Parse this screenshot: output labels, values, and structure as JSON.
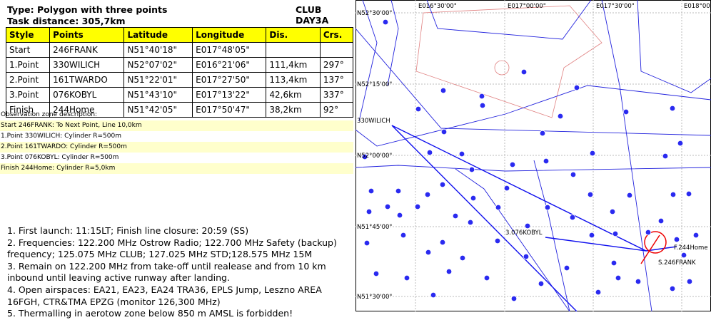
{
  "header": {
    "type_line": "Type: Polygon with three points",
    "club": "CLUB DAY3A",
    "distance": "Task distance: 305,7km"
  },
  "table": {
    "columns": [
      "Style",
      "Points",
      "Latitude",
      "Longitude",
      "Dis.",
      "Crs."
    ],
    "rows": [
      [
        "Start",
        "246FRANK",
        "N51°40'18\"",
        "E017°48'05\""
      ],
      [
        "1.Point",
        "330WILICH",
        "N52°07'02\"",
        "E016°21'06\"",
        "111,4km",
        "297°"
      ],
      [
        "2.Point",
        "161TWARDO",
        "N51°22'01\"",
        "E017°27'50\"",
        "113,4km",
        "137°"
      ],
      [
        "3.Point",
        "076KOBYL",
        "N51°43'10\"",
        "E017°13'22\"",
        "42,6km",
        "337°"
      ],
      [
        "Finish",
        "244Home",
        "N51°42'05\"",
        "E017°50'47\"",
        "38,2km",
        "92°"
      ]
    ]
  },
  "zones": {
    "title": "Observation zone description:",
    "items": [
      "Start 246FRANK: To Next Point, Line 10,0km",
      "1.Point 330WILICH: Cylinder R=500m",
      "2.Point 161TWARDO: Cylinder R=500m",
      "3.Point 076KOBYL: Cylinder R=500m",
      "Finish 244Home: Cylinder R=5,0km"
    ]
  },
  "notes": [
    "1. First launch: 11:15LT; Finish line closure: 20:59 (SS)",
    "2. Frequencies: 122.200 MHz Ostrow Radio; 122.700 MHz Safety (backup) frequency; 125.075 MHz CLUB; 127.025 MHz STD;128.575 MHz 15M",
    "3. Remain on 122.200 MHz from take-off until realease and from 10 km inbound until leaving active runway after landing.",
    "4. Open airspaces: EA21, EA23, EA24 TRA36, EPLS Jump, Leszno AREA 16FGH, CTR&TMA EPZG (monitor 126,300 MHz)",
    "5. Thermalling in aerotow zone below 850 m AMSL is forbidden!"
  ],
  "map": {
    "lon_labels": [
      "E016°30'00\"",
      "E017°00'00\"",
      "E017°30'00\"",
      "E018°00'00\""
    ],
    "lat_labels": [
      "N52°30'00\"",
      "N52°15'00\"",
      "N52°00'00\"",
      "N51°45'00\"",
      "N51°30'00\""
    ],
    "waypoints": [
      "330WILICH",
      "3.076KOBYL",
      "F.244Home",
      "S.246FRANK"
    ]
  }
}
